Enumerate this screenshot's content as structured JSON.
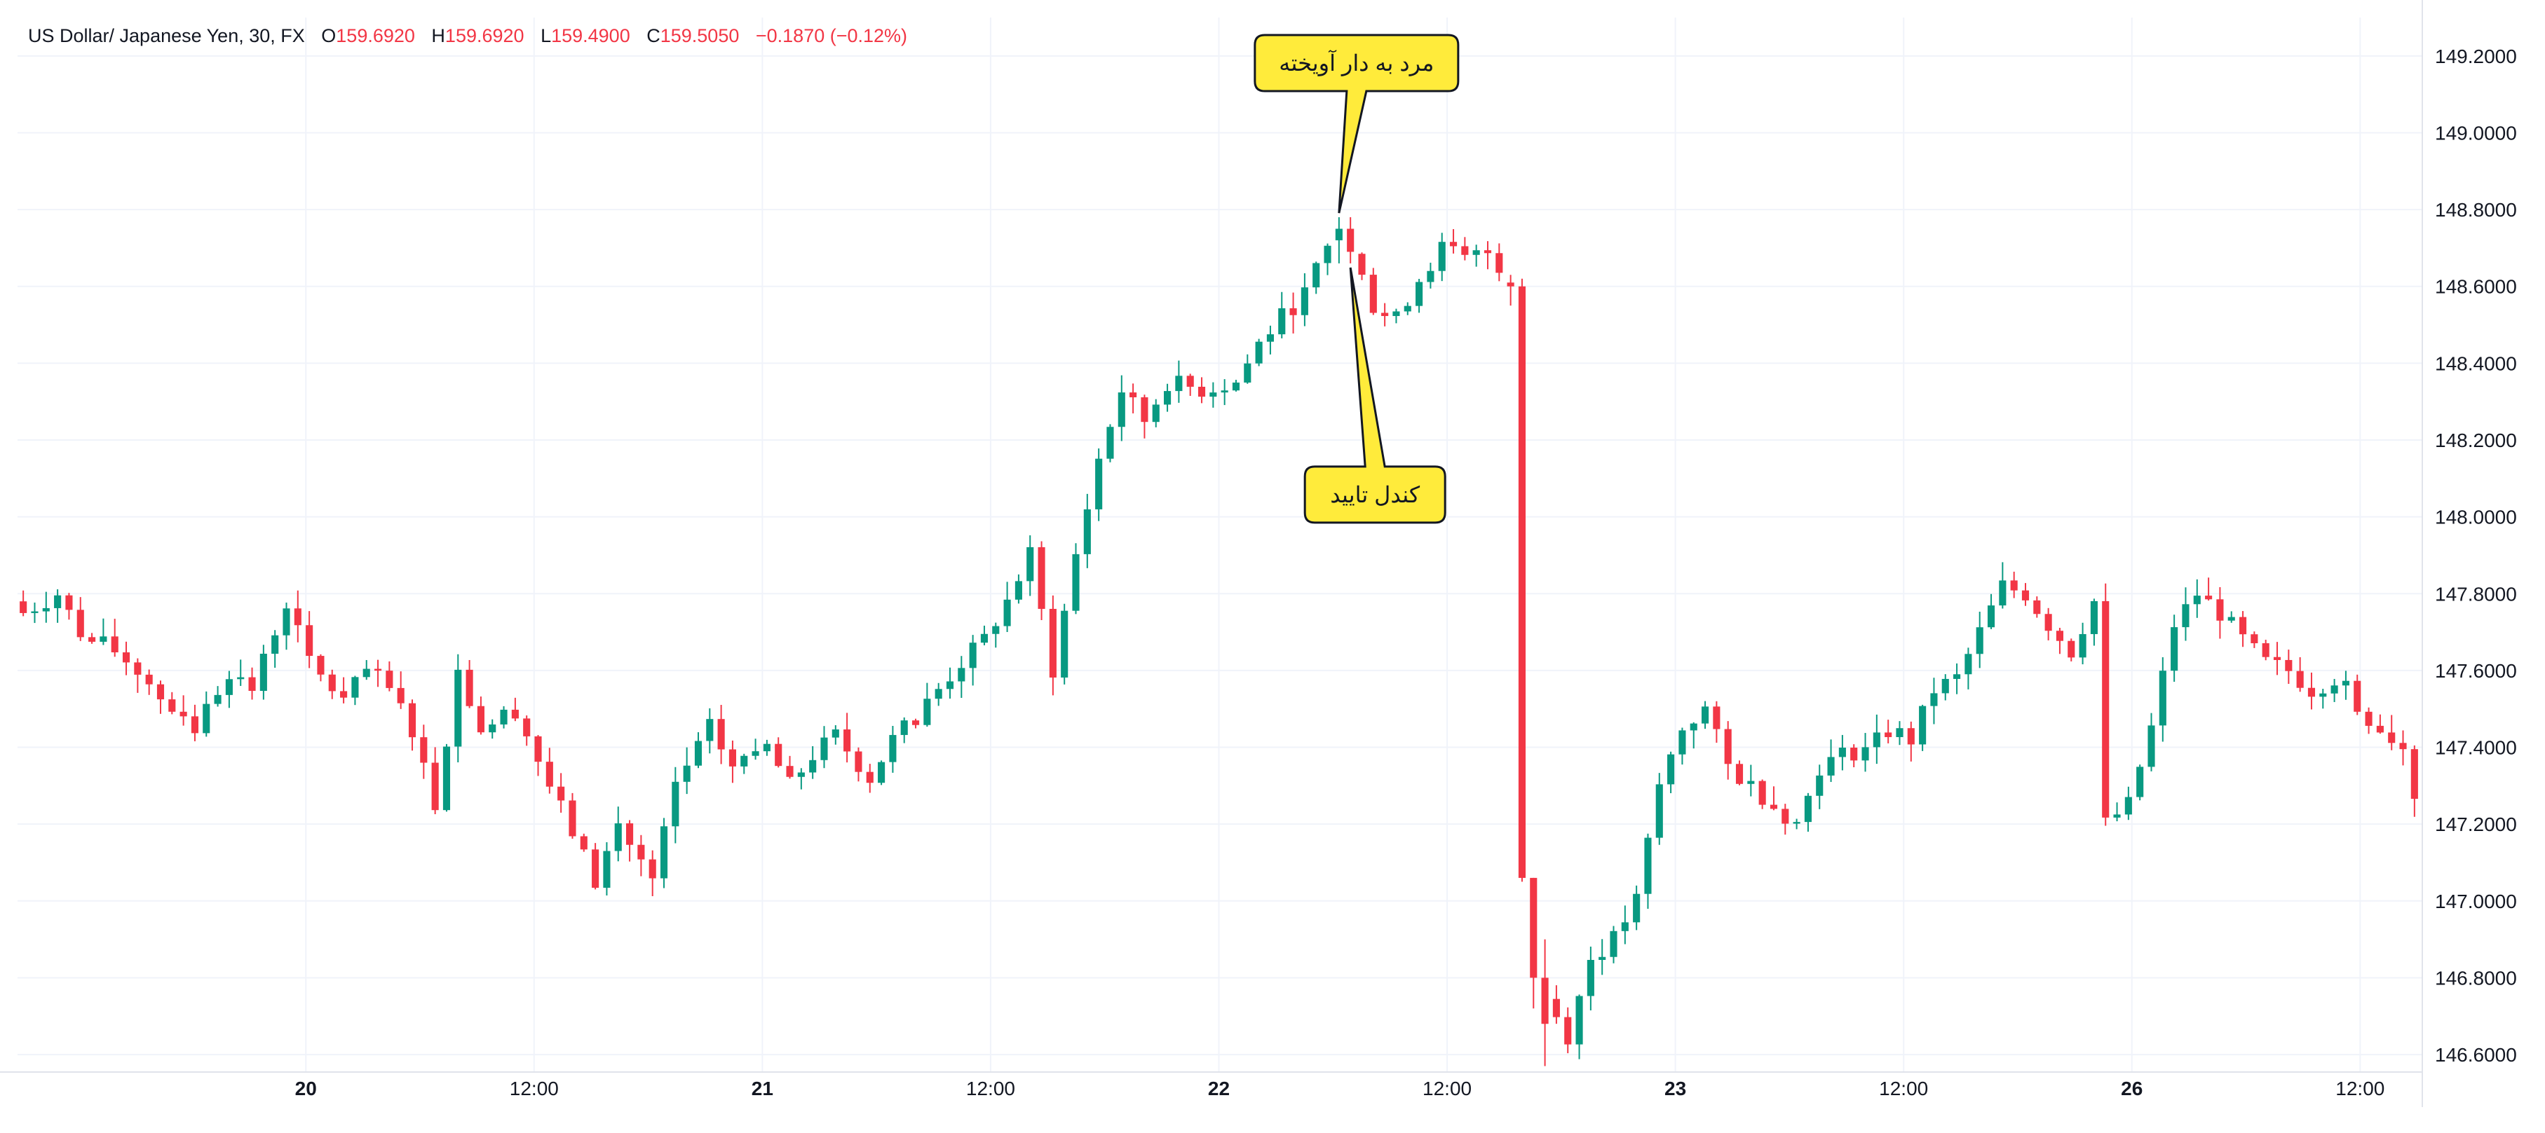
{
  "legend": {
    "symbol": "US Dollar/ Japanese Yen, 30, FX",
    "o_label": "O",
    "o_value": "159.6920",
    "h_label": "H",
    "h_value": "159.6920",
    "l_label": "L",
    "l_value": "159.4900",
    "c_label": "C",
    "c_value": "159.5050",
    "change": "−0.1870 (−0.12%)"
  },
  "colors": {
    "up": "#089981",
    "down": "#f23645",
    "grid": "#f0f3fa",
    "axis_text": "#131722",
    "callout_fill": "#ffeb3b",
    "callout_stroke": "#131722"
  },
  "chart_data": {
    "type": "candlestick",
    "title": "US Dollar/ Japanese Yen, 30, FX",
    "ylim": [
      146.56,
      149.3
    ],
    "yticks": [
      "149.2000",
      "149.0000",
      "148.8000",
      "148.6000",
      "148.4000",
      "148.2000",
      "148.0000",
      "147.8000",
      "147.6000",
      "147.4000",
      "147.2000",
      "147.0000",
      "146.8000",
      "146.6000"
    ],
    "x_ticks": [
      {
        "label": "20",
        "bold": true,
        "x": 0.12
      },
      {
        "label": "12:00",
        "bold": false,
        "x": 0.215
      },
      {
        "label": "21",
        "bold": true,
        "x": 0.31
      },
      {
        "label": "12:00",
        "bold": false,
        "x": 0.405
      },
      {
        "label": "22",
        "bold": true,
        "x": 0.5
      },
      {
        "label": "12:00",
        "bold": false,
        "x": 0.595
      },
      {
        "label": "23",
        "bold": true,
        "x": 0.69
      },
      {
        "label": "12:00",
        "bold": false,
        "x": 0.785
      },
      {
        "label": "26",
        "bold": true,
        "x": 0.88
      },
      {
        "label": "12:00",
        "bold": false,
        "x": 0.975
      }
    ],
    "grid": true,
    "anchors": [
      [
        0,
        147.75
      ],
      [
        3,
        147.8
      ],
      [
        5,
        147.7
      ],
      [
        8,
        147.65
      ],
      [
        10,
        147.6
      ],
      [
        13,
        147.5
      ],
      [
        15,
        147.45
      ],
      [
        18,
        147.6
      ],
      [
        20,
        147.55
      ],
      [
        23,
        147.78
      ],
      [
        25,
        147.62
      ],
      [
        28,
        147.52
      ],
      [
        30,
        147.6
      ],
      [
        32,
        147.55
      ],
      [
        34,
        147.45
      ],
      [
        36,
        147.25
      ],
      [
        38,
        147.6
      ],
      [
        40,
        147.45
      ],
      [
        43,
        147.5
      ],
      [
        46,
        147.3
      ],
      [
        48,
        147.18
      ],
      [
        50,
        147.05
      ],
      [
        52,
        147.2
      ],
      [
        55,
        147.05
      ],
      [
        57,
        147.3
      ],
      [
        60,
        147.45
      ],
      [
        62,
        147.35
      ],
      [
        65,
        147.4
      ],
      [
        67,
        147.3
      ],
      [
        69,
        147.38
      ],
      [
        71,
        147.43
      ],
      [
        74,
        147.32
      ],
      [
        76,
        147.42
      ],
      [
        78,
        147.48
      ],
      [
        80,
        147.55
      ],
      [
        82,
        147.62
      ],
      [
        84,
        147.68
      ],
      [
        86,
        147.78
      ],
      [
        88,
        147.9
      ],
      [
        90,
        147.6
      ],
      [
        92,
        147.9
      ],
      [
        94,
        148.15
      ],
      [
        96,
        148.33
      ],
      [
        98,
        148.25
      ],
      [
        100,
        148.35
      ],
      [
        103,
        148.33
      ],
      [
        106,
        148.35
      ],
      [
        108,
        148.45
      ],
      [
        110,
        148.52
      ],
      [
        112,
        148.58
      ],
      [
        114,
        148.7
      ],
      [
        115,
        148.74
      ],
      [
        116,
        148.68
      ],
      [
        117,
        148.62
      ],
      [
        118,
        148.55
      ],
      [
        120,
        148.52
      ],
      [
        122,
        148.62
      ],
      [
        124,
        148.7
      ],
      [
        126,
        148.67
      ],
      [
        128,
        148.69
      ],
      [
        130,
        148.62
      ],
      [
        131,
        146.8
      ],
      [
        133,
        146.75
      ],
      [
        135,
        146.65
      ],
      [
        137,
        146.85
      ],
      [
        139,
        146.9
      ],
      [
        141,
        147.0
      ],
      [
        143,
        147.3
      ],
      [
        145,
        147.45
      ],
      [
        147,
        147.5
      ],
      [
        149,
        147.35
      ],
      [
        151,
        147.3
      ],
      [
        153,
        147.25
      ],
      [
        155,
        147.2
      ],
      [
        157,
        147.35
      ],
      [
        159,
        147.38
      ],
      [
        161,
        147.4
      ],
      [
        163,
        147.45
      ],
      [
        165,
        147.42
      ],
      [
        167,
        147.55
      ],
      [
        169,
        147.58
      ],
      [
        171,
        147.7
      ],
      [
        173,
        147.82
      ],
      [
        175,
        147.8
      ],
      [
        177,
        147.72
      ],
      [
        179,
        147.65
      ],
      [
        181,
        147.78
      ],
      [
        182,
        147.2
      ],
      [
        184,
        147.25
      ],
      [
        186,
        147.45
      ],
      [
        188,
        147.72
      ],
      [
        190,
        147.8
      ],
      [
        192,
        147.75
      ],
      [
        194,
        147.68
      ],
      [
        196,
        147.62
      ],
      [
        198,
        147.6
      ],
      [
        200,
        147.55
      ],
      [
        202,
        147.58
      ],
      [
        204,
        147.5
      ],
      [
        206,
        147.45
      ],
      [
        208,
        147.4
      ],
      [
        209,
        147.28
      ]
    ],
    "candle_count": 210,
    "overrides": [
      {
        "i": 115,
        "o": 148.72,
        "h": 148.78,
        "l": 148.66,
        "c": 148.75
      },
      {
        "i": 116,
        "o": 148.75,
        "h": 148.78,
        "l": 148.66,
        "c": 148.69
      },
      {
        "i": 130,
        "o": 148.61,
        "h": 148.63,
        "l": 148.55,
        "c": 148.6
      },
      {
        "i": 131,
        "o": 148.6,
        "h": 148.62,
        "l": 147.05,
        "c": 147.06
      },
      {
        "i": 132,
        "o": 147.06,
        "h": 147.06,
        "l": 146.72,
        "c": 146.8
      },
      {
        "i": 133,
        "o": 146.8,
        "h": 146.9,
        "l": 146.57,
        "c": 146.68
      }
    ],
    "annotations": [
      {
        "text": "مرد به دار آویخته",
        "target_index": 115,
        "target_value": 148.78,
        "position": "above"
      },
      {
        "text": "کندل تایید",
        "target_index": 116,
        "target_value": 148.66,
        "position": "below"
      }
    ]
  }
}
